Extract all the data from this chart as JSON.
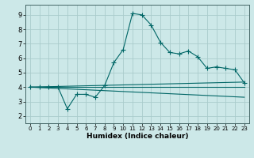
{
  "xlabel": "Humidex (Indice chaleur)",
  "bg_color": "#cce8e8",
  "grid_color": "#aacccc",
  "line_color": "#006666",
  "xlim": [
    -0.5,
    23.5
  ],
  "ylim": [
    1.5,
    9.7
  ],
  "xticks": [
    0,
    1,
    2,
    3,
    4,
    5,
    6,
    7,
    8,
    9,
    10,
    11,
    12,
    13,
    14,
    15,
    16,
    17,
    18,
    19,
    20,
    21,
    22,
    23
  ],
  "yticks": [
    2,
    3,
    4,
    5,
    6,
    7,
    8,
    9
  ],
  "series1_x": [
    0,
    1,
    2,
    3,
    4,
    5,
    6,
    7,
    8,
    9,
    10,
    11,
    12,
    13,
    14,
    15,
    16,
    17,
    18,
    19,
    20,
    21,
    22,
    23
  ],
  "series1_y": [
    4.0,
    4.0,
    4.0,
    4.0,
    2.5,
    3.5,
    3.5,
    3.3,
    4.1,
    5.7,
    6.6,
    9.1,
    9.0,
    8.3,
    7.1,
    6.4,
    6.3,
    6.5,
    6.1,
    5.3,
    5.4,
    5.3,
    5.2,
    4.3
  ],
  "series2_x": [
    0,
    23
  ],
  "series2_y": [
    4.0,
    4.35
  ],
  "series3_x": [
    0,
    23
  ],
  "series3_y": [
    4.0,
    4.0
  ],
  "series4_x": [
    0,
    23
  ],
  "series4_y": [
    4.0,
    3.3
  ]
}
